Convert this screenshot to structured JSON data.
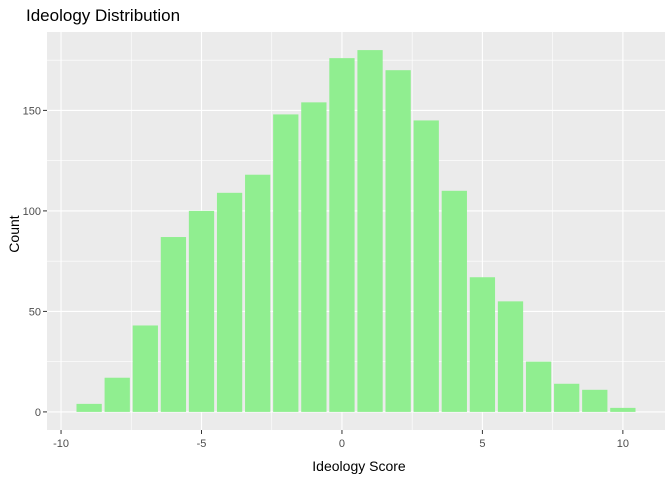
{
  "chart_data": {
    "type": "bar",
    "title": "Ideology Distribution",
    "xlabel": "Ideology Score",
    "ylabel": "Count",
    "x": [
      -9,
      -8,
      -7,
      -6,
      -5,
      -4,
      -3,
      -2,
      -1,
      0,
      1,
      2,
      3,
      4,
      5,
      6,
      7,
      8,
      9,
      10
    ],
    "values": [
      4,
      17,
      43,
      87,
      100,
      109,
      118,
      148,
      154,
      176,
      180,
      170,
      145,
      110,
      67,
      55,
      25,
      14,
      11,
      2
    ],
    "xlim": [
      -10.5,
      11.5
    ],
    "ylim": [
      -9,
      189
    ],
    "x_ticks": [
      -10,
      -5,
      0,
      5,
      10
    ],
    "x_tick_labels": [
      "-10",
      "-5",
      "0",
      "5",
      "10"
    ],
    "y_ticks": [
      0,
      50,
      100,
      150
    ],
    "y_tick_labels": [
      "0",
      "50",
      "100",
      "150"
    ],
    "bar_color": "#90EE90",
    "panel_background": "#EBEBEB",
    "grid_color": "#FFFFFF",
    "grid": true
  }
}
